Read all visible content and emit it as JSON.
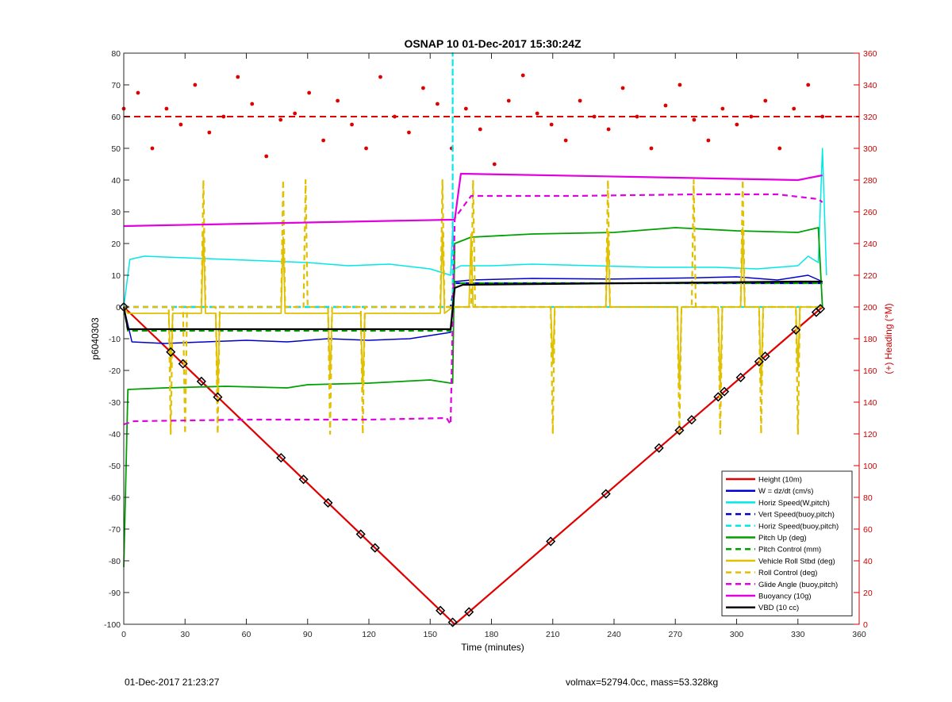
{
  "chart_data": {
    "type": "line",
    "title": "OSNAP 10 01-Dec-2017 15:30:24Z",
    "xlabel": "Time (minutes)",
    "ylabel_left": "p6040303",
    "ylabel_right": "(+) Heading (°M)",
    "xlim": [
      0,
      360
    ],
    "ylim_left": [
      -100,
      80
    ],
    "ylim_right": [
      0,
      360
    ],
    "x_ticks": [
      0,
      30,
      60,
      90,
      120,
      150,
      180,
      210,
      240,
      270,
      300,
      330,
      360
    ],
    "y_left_ticks": [
      -100,
      -90,
      -80,
      -70,
      -60,
      -50,
      -40,
      -30,
      -20,
      -10,
      0,
      10,
      20,
      30,
      40,
      50,
      60,
      70,
      80
    ],
    "y_right_ticks": [
      0,
      20,
      40,
      60,
      80,
      100,
      120,
      140,
      160,
      180,
      200,
      220,
      240,
      260,
      280,
      300,
      320,
      340,
      360
    ],
    "grid": false,
    "legend_position": "bottom-right",
    "colors": {
      "height": "#e00000",
      "w": "#0000cc",
      "horiz_speed": "#00e8e8",
      "pitch": "#00a000",
      "roll": "#e0c000",
      "glide": "#e000e0",
      "buoyancy": "#e000e0",
      "vbd": "#000000",
      "heading": "#e00000",
      "right_axis": "#cc0000"
    },
    "series": [
      {
        "name": "Height (10m)",
        "color": "#e00000",
        "style": "solid",
        "width": 2.2,
        "x": [
          0,
          162,
          342
        ],
        "y": [
          0,
          -100,
          0
        ]
      },
      {
        "name": "W = dz/dt (cm/s)",
        "color": "#0000cc",
        "style": "solid",
        "width": 1.5,
        "x": [
          0,
          4,
          20,
          40,
          60,
          80,
          100,
          120,
          140,
          155,
          160,
          162,
          170,
          200,
          240,
          280,
          300,
          320,
          335,
          342
        ],
        "y": [
          0,
          -11,
          -11.5,
          -11,
          -10.5,
          -11,
          -10,
          -10.5,
          -10,
          -8.5,
          -8,
          8,
          8.5,
          9,
          8.8,
          9.2,
          9.5,
          8.5,
          10,
          8
        ]
      },
      {
        "name": "Horiz Speed(W,pitch)",
        "color": "#00e8e8",
        "style": "solid",
        "width": 1.5,
        "x": [
          0,
          3,
          10,
          30,
          50,
          70,
          90,
          110,
          130,
          150,
          160,
          161,
          162,
          165,
          180,
          200,
          230,
          260,
          290,
          310,
          330,
          335,
          340,
          342,
          344
        ],
        "y": [
          0,
          15,
          16,
          15.5,
          15,
          14.5,
          14,
          13,
          13.5,
          12,
          10,
          25,
          12,
          13,
          13,
          13.5,
          13,
          12.5,
          12.5,
          12,
          13,
          16,
          14,
          50,
          10
        ]
      },
      {
        "name": "Vert Speed(buoy,pitch)",
        "color": "#0000cc",
        "style": "dashed",
        "width": 2.2,
        "x": [
          0,
          160,
          162,
          342
        ],
        "y": [
          0,
          0,
          7.5,
          7.5
        ]
      },
      {
        "name": "Horiz Speed(buoy,pitch)",
        "color": "#00e8e8",
        "style": "dashed",
        "width": 2.2,
        "x": [
          0,
          161,
          161,
          161,
          342
        ],
        "y": [
          0,
          0,
          80,
          0,
          0
        ]
      },
      {
        "name": "Pitch Up (deg)",
        "color": "#00a000",
        "style": "solid",
        "width": 1.8,
        "x": [
          0,
          2,
          20,
          50,
          80,
          90,
          120,
          150,
          160,
          161,
          162,
          170,
          200,
          240,
          270,
          300,
          330,
          340,
          342
        ],
        "y": [
          -82,
          -26,
          -25.5,
          -25,
          -25.5,
          -24.5,
          -24,
          -23,
          -24,
          -24,
          20,
          22,
          23,
          23.5,
          25,
          24,
          23.5,
          25,
          0
        ]
      },
      {
        "name": "Pitch Control (mm)",
        "color": "#00a000",
        "style": "dashed",
        "width": 2.2,
        "x": [
          0,
          2,
          160,
          162,
          342
        ],
        "y": [
          0,
          -7.5,
          -7.5,
          7.5,
          7.5
        ]
      },
      {
        "name": "Vehicle Roll Stbd (deg)",
        "color": "#e0c000",
        "style": "solid",
        "width": 1.8,
        "x": [
          0,
          2,
          22,
          23,
          24,
          38,
          39,
          40,
          45,
          46,
          47,
          77,
          78,
          79,
          100,
          101,
          102,
          116,
          117,
          118,
          155,
          156,
          157,
          161,
          162,
          169,
          170,
          171,
          209,
          210,
          211,
          236,
          237,
          238,
          271,
          272,
          273,
          291,
          292,
          293,
          302,
          303,
          304,
          311,
          312,
          313,
          329,
          330,
          331,
          341,
          342
        ],
        "y": [
          0,
          -2,
          -2,
          -20,
          -2,
          -2,
          24,
          -2,
          -2,
          -26,
          -2,
          -2,
          22,
          -2,
          -2,
          -22,
          -2,
          -2,
          -26,
          -2,
          -2,
          24,
          -2,
          0,
          0,
          0,
          23,
          0,
          0,
          -18,
          0,
          0,
          23,
          0,
          0,
          -26,
          0,
          0,
          -26,
          0,
          0,
          25,
          0,
          0,
          -25,
          0,
          0,
          -20,
          0,
          0,
          0
        ]
      },
      {
        "name": "Roll Control (deg)",
        "color": "#e0c000",
        "style": "dashed",
        "width": 2.2,
        "x": [
          0,
          22,
          23,
          24,
          29,
          30,
          31,
          38,
          39,
          40,
          45,
          46,
          47,
          77,
          78,
          79,
          88,
          89,
          90,
          100,
          101,
          102,
          116,
          117,
          118,
          155,
          156,
          157,
          170,
          171,
          172,
          209,
          210,
          211,
          236,
          237,
          238,
          271,
          272,
          273,
          278,
          279,
          280,
          291,
          292,
          293,
          302,
          303,
          304,
          311,
          312,
          313,
          329,
          330,
          331,
          341,
          342
        ],
        "y": [
          0,
          0,
          -40,
          0,
          0,
          -40,
          0,
          0,
          40,
          0,
          0,
          -40,
          0,
          0,
          40,
          0,
          0,
          40,
          0,
          0,
          -40,
          0,
          0,
          -40,
          0,
          0,
          40,
          0,
          0,
          40,
          0,
          0,
          -40,
          0,
          0,
          40,
          0,
          0,
          -40,
          0,
          0,
          40,
          0,
          0,
          -40,
          0,
          0,
          40,
          0,
          0,
          -40,
          0,
          0,
          -40,
          0,
          0,
          0
        ]
      },
      {
        "name": "Glide Angle (buoy,pitch)",
        "color": "#e000e0",
        "style": "dashed",
        "width": 2.2,
        "x": [
          0,
          5,
          60,
          120,
          158,
          160,
          162,
          170,
          220,
          280,
          320,
          340,
          342
        ],
        "y": [
          -37,
          -36,
          -35.5,
          -35.5,
          -35,
          -37,
          28,
          35,
          35,
          35.5,
          35.5,
          34,
          33
        ]
      },
      {
        "name": "Buoyancy (10g)",
        "color": "#e000e0",
        "style": "solid",
        "width": 2.2,
        "x": [
          0,
          160,
          162,
          165,
          250,
          330,
          342
        ],
        "y": [
          25.5,
          27.5,
          27.5,
          42,
          41,
          40,
          41.5
        ]
      },
      {
        "name": "VBD (10 cc)",
        "color": "#000000",
        "style": "solid",
        "width": 2.2,
        "x": [
          0,
          2,
          160,
          162,
          166,
          330,
          342
        ],
        "y": [
          0,
          -7,
          -7,
          6,
          7,
          8,
          8
        ]
      }
    ],
    "heading_reference": {
      "value_deg": 320,
      "color": "#e00000",
      "style": "dashed"
    },
    "heading_samples_deg": [
      325,
      335,
      300,
      325,
      315,
      340,
      310,
      320,
      345,
      328,
      295,
      318,
      322,
      335,
      305,
      330,
      315,
      300,
      345,
      320,
      310,
      338,
      328,
      300,
      325,
      312,
      290,
      330,
      346,
      322,
      315,
      305,
      330,
      320,
      312,
      338,
      320,
      300,
      327,
      340,
      318,
      305,
      325,
      315,
      320,
      330,
      300,
      325,
      340,
      320
    ],
    "markers": {
      "x": [
        0,
        23,
        29,
        38,
        46,
        77,
        88,
        100,
        116,
        123,
        155,
        161,
        169,
        209,
        236,
        262,
        272,
        278,
        291,
        294,
        302,
        311,
        314,
        329,
        339,
        341
      ],
      "shape": "diamond"
    }
  },
  "footer": {
    "left": "01-Dec-2017 21:23:27",
    "right": "volmax=52794.0cc, mass=53.328kg"
  }
}
